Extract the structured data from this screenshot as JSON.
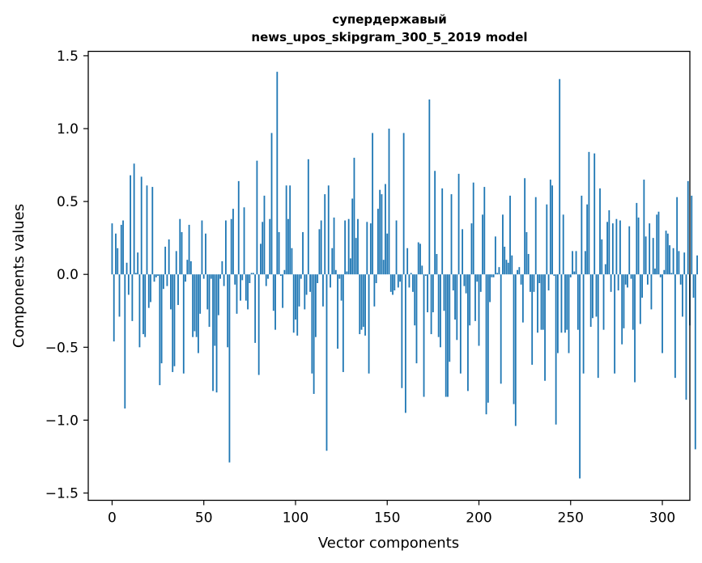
{
  "chart_data": {
    "type": "bar",
    "title": "супердержавый",
    "subtitle": "news_upos_skipgram_300_5_2019 model",
    "xlabel": "Vector components",
    "ylabel": "Components values",
    "xlim": [
      -13,
      315
    ],
    "ylim": [
      -1.55,
      1.53
    ],
    "xticks": [
      0,
      50,
      100,
      150,
      200,
      250,
      300
    ],
    "xtick_labels": [
      "0",
      "50",
      "100",
      "150",
      "200",
      "250",
      "300"
    ],
    "yticks": [
      -1.5,
      -1.0,
      -0.5,
      0.0,
      0.5,
      1.0,
      1.5
    ],
    "ytick_labels": [
      "−1.5",
      "−1.0",
      "−0.5",
      "0.0",
      "0.5",
      "1.0",
      "1.5"
    ],
    "grid": false,
    "legend": "none",
    "bar_color": "#1f77b4",
    "values": [
      0.35,
      -0.46,
      0.28,
      0.18,
      -0.29,
      0.34,
      0.37,
      -0.92,
      0.08,
      -0.14,
      0.68,
      -0.32,
      0.76,
      0.01,
      0.15,
      -0.5,
      0.67,
      -0.41,
      -0.43,
      0.61,
      -0.23,
      -0.19,
      0.6,
      -0.05,
      -0.02,
      -0.01,
      -0.76,
      -0.61,
      -0.1,
      0.19,
      -0.08,
      0.24,
      -0.24,
      -0.67,
      -0.63,
      0.16,
      -0.21,
      0.38,
      0.29,
      -0.68,
      -0.05,
      0.1,
      0.34,
      0.09,
      -0.43,
      -0.39,
      -0.43,
      -0.54,
      -0.27,
      0.37,
      -0.03,
      0.28,
      -0.24,
      -0.36,
      -0.03,
      -0.8,
      -0.49,
      -0.81,
      -0.28,
      -0.03,
      0.09,
      -0.08,
      0.37,
      -0.5,
      -1.29,
      0.38,
      0.45,
      -0.07,
      -0.27,
      0.64,
      -0.18,
      -0.04,
      0.46,
      -0.18,
      -0.24,
      -0.06,
      0.01,
      0.01,
      -0.47,
      0.78,
      -0.69,
      0.21,
      0.36,
      0.54,
      -0.08,
      -0.03,
      0.38,
      0.97,
      -0.25,
      -0.38,
      1.39,
      0.29,
      -0.01,
      -0.23,
      0.03,
      0.61,
      0.38,
      0.61,
      0.18,
      -0.4,
      -0.31,
      -0.42,
      -0.22,
      -0.03,
      0.29,
      -0.24,
      -0.14,
      0.79,
      -0.12,
      -0.68,
      -0.82,
      -0.43,
      -0.06,
      0.31,
      0.37,
      -0.22,
      0.55,
      -1.21,
      0.61,
      -0.09,
      0.18,
      0.39,
      0.03,
      -0.51,
      -0.03,
      -0.18,
      -0.67,
      0.37,
      0.02,
      0.38,
      0.11,
      0.52,
      0.8,
      0.25,
      0.38,
      -0.41,
      -0.38,
      -0.36,
      -0.42,
      0.36,
      -0.68,
      0.35,
      0.97,
      -0.22,
      -0.06,
      0.45,
      0.58,
      0.55,
      0.1,
      0.62,
      0.28,
      1.0,
      -0.12,
      -0.14,
      -0.11,
      0.37,
      -0.09,
      -0.05,
      -0.78,
      0.97,
      -0.95,
      0.18,
      -0.09,
      0.01,
      -0.12,
      -0.35,
      -0.61,
      0.22,
      0.21,
      0.06,
      -0.84,
      -0.01,
      -0.26,
      1.2,
      -0.41,
      -0.26,
      0.71,
      0.14,
      -0.43,
      -0.5,
      0.59,
      -0.25,
      -0.84,
      -0.84,
      -0.6,
      0.55,
      -0.11,
      -0.31,
      -0.45,
      0.69,
      -0.68,
      0.31,
      -0.08,
      -0.13,
      -0.8,
      -0.35,
      0.35,
      0.63,
      -0.32,
      -0.05,
      -0.49,
      -0.12,
      0.41,
      0.6,
      -0.96,
      -0.88,
      -0.19,
      -0.02,
      -0.02,
      0.26,
      0.01,
      0.05,
      -0.75,
      0.41,
      0.19,
      0.1,
      0.08,
      0.54,
      0.13,
      -0.89,
      -1.04,
      0.03,
      0.05,
      -0.07,
      -0.33,
      0.66,
      0.29,
      0.14,
      -0.12,
      -0.62,
      -0.12,
      0.53,
      -0.4,
      -0.06,
      -0.38,
      -0.38,
      -0.73,
      0.48,
      -0.11,
      0.65,
      0.61,
      -0.01,
      -1.03,
      -0.54,
      1.34,
      -0.4,
      0.41,
      -0.4,
      -0.38,
      -0.54,
      -0.02,
      0.16,
      0.02,
      0.16,
      -0.38,
      -1.4,
      0.54,
      -0.68,
      0.16,
      0.48,
      0.84,
      -0.36,
      -0.3,
      0.83,
      -0.29,
      -0.71,
      0.59,
      0.24,
      -0.38,
      0.07,
      0.36,
      0.44,
      -0.12,
      0.35,
      -0.68,
      0.38,
      -0.11,
      0.37,
      -0.48,
      -0.37,
      -0.07,
      -0.09,
      0.33,
      -0.03,
      -0.38,
      -0.74,
      0.49,
      0.39,
      -0.34,
      -0.16,
      0.65,
      0.26,
      -0.07,
      0.35,
      -0.24,
      0.25,
      0.04,
      0.41,
      0.43,
      -0.02,
      -0.54,
      0.03,
      0.3,
      0.28,
      0.2,
      0.01,
      0.18,
      -0.71,
      0.53,
      0.16,
      -0.07,
      -0.29,
      0.15,
      -0.86,
      0.64,
      -0.35,
      0.54,
      -0.16,
      -1.2,
      0.13
    ]
  }
}
